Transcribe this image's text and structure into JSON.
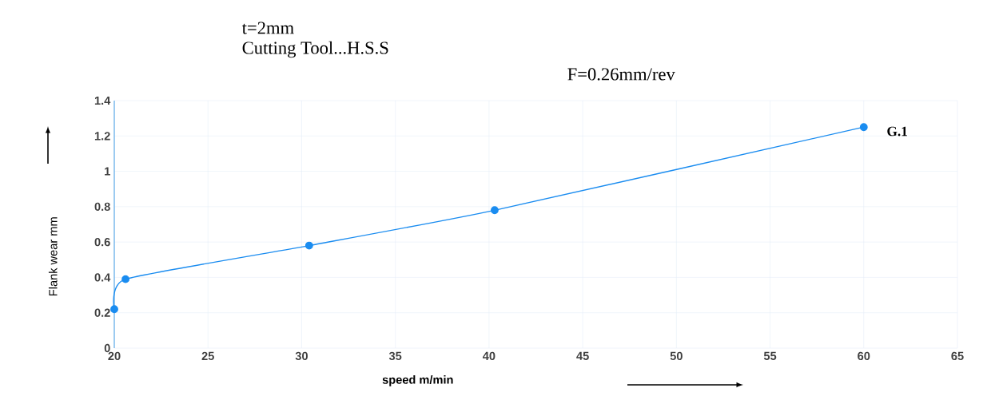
{
  "chart_data": {
    "type": "line",
    "title": "t=2mm",
    "subtitle": "Cutting Tool...H.S.S",
    "annotations": [
      "F=0.26mm/rev"
    ],
    "xlabel": "speed  m/min",
    "ylabel": "Flank wear  mm",
    "x": [
      20,
      20.6,
      30.4,
      40.3,
      60
    ],
    "series": [
      {
        "name": "G.1",
        "color": "#1a8cf0",
        "values": [
          0.22,
          0.39,
          0.58,
          0.78,
          1.25
        ]
      }
    ],
    "xlim": [
      20,
      65
    ],
    "xticks": [
      20,
      25,
      30,
      35,
      40,
      45,
      50,
      55,
      60,
      65
    ],
    "ylim": [
      0,
      1.4
    ],
    "yticks": [
      0,
      0.2,
      0.4,
      0.6,
      0.8,
      1,
      1.2,
      1.4
    ],
    "grid": true,
    "marker": "circle",
    "line_style": "solid",
    "legend": false
  }
}
